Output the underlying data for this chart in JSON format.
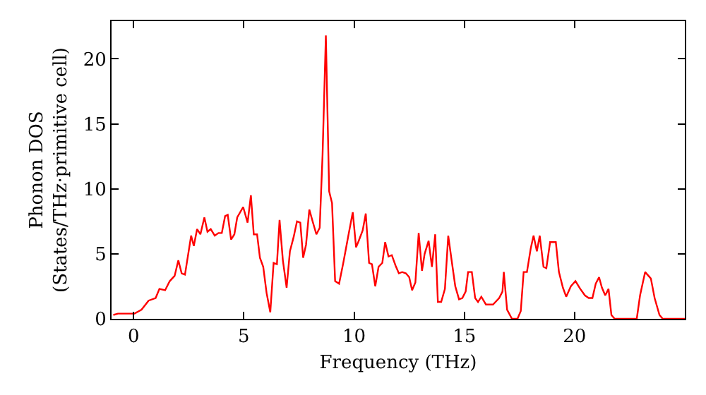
{
  "chart_data": {
    "type": "line",
    "xlabel": "Frequency (THz)",
    "ylabel": "Phonon DOS\n(States/THz·primitive cell)",
    "xlim": [
      -1,
      25
    ],
    "ylim": [
      0,
      22.9
    ],
    "xticks": [
      0,
      5,
      10,
      15,
      20
    ],
    "yticks": [
      0,
      5,
      10,
      15,
      20
    ],
    "grid": false,
    "marker": "none",
    "line_style": "solid",
    "series": [
      {
        "color": "#ff0000",
        "x": [
          -0.92,
          -0.71,
          0.04,
          0.36,
          0.68,
          1.0,
          1.17,
          1.43,
          1.64,
          1.86,
          2.03,
          2.18,
          2.33,
          2.61,
          2.73,
          2.88,
          3.03,
          3.21,
          3.35,
          3.5,
          3.68,
          3.85,
          4.0,
          4.15,
          4.27,
          4.42,
          4.57,
          4.7,
          4.97,
          5.17,
          5.32,
          5.45,
          5.6,
          5.73,
          5.88,
          6.03,
          6.2,
          6.35,
          6.5,
          6.62,
          6.77,
          6.94,
          7.09,
          7.26,
          7.41,
          7.56,
          7.69,
          7.82,
          7.97,
          8.12,
          8.29,
          8.44,
          8.57,
          8.72,
          8.87,
          9.0,
          9.14,
          9.32,
          9.51,
          9.74,
          9.94,
          10.09,
          10.21,
          10.39,
          10.53,
          10.68,
          10.81,
          10.96,
          11.11,
          11.28,
          11.41,
          11.56,
          11.71,
          11.88,
          12.03,
          12.18,
          12.35,
          12.5,
          12.63,
          12.78,
          12.93,
          13.08,
          13.2,
          13.38,
          13.53,
          13.68,
          13.8,
          13.95,
          14.12,
          14.27,
          14.44,
          14.59,
          14.76,
          14.91,
          15.06,
          15.17,
          15.34,
          15.49,
          15.62,
          15.77,
          15.98,
          16.3,
          16.58,
          16.73,
          16.79,
          16.94,
          17.16,
          17.41,
          17.56,
          17.69,
          17.84,
          18.01,
          18.14,
          18.29,
          18.42,
          18.59,
          18.72,
          18.89,
          19.15,
          19.29,
          19.47,
          19.62,
          19.83,
          20.04,
          20.26,
          20.47,
          20.64,
          20.81,
          20.96,
          21.11,
          21.24,
          21.39,
          21.54,
          21.67,
          21.82,
          22.82,
          22.97,
          23.2,
          23.46,
          23.63,
          23.85,
          24.0,
          25.0
        ],
        "values": [
          0.3,
          0.4,
          0.4,
          0.7,
          1.4,
          1.6,
          2.3,
          2.2,
          2.9,
          3.3,
          4.5,
          3.5,
          3.4,
          6.4,
          5.6,
          6.9,
          6.5,
          7.8,
          6.7,
          6.9,
          6.4,
          6.6,
          6.6,
          7.9,
          8.0,
          6.1,
          6.5,
          7.8,
          8.6,
          7.4,
          9.5,
          6.5,
          6.5,
          4.7,
          4.0,
          2.0,
          0.5,
          4.3,
          4.2,
          7.6,
          4.5,
          2.4,
          5.2,
          6.3,
          7.5,
          7.4,
          4.7,
          5.7,
          8.4,
          7.5,
          6.5,
          7.0,
          12.6,
          21.8,
          9.8,
          8.9,
          2.9,
          2.7,
          4.3,
          6.4,
          8.2,
          5.5,
          6.0,
          6.8,
          8.1,
          4.3,
          4.2,
          2.5,
          4.0,
          4.3,
          5.9,
          4.8,
          4.9,
          4.1,
          3.5,
          3.6,
          3.5,
          3.2,
          2.2,
          2.8,
          6.6,
          3.7,
          5.0,
          6.0,
          4.0,
          6.5,
          1.3,
          1.3,
          2.3,
          6.4,
          4.3,
          2.5,
          1.5,
          1.6,
          2.1,
          3.6,
          3.6,
          1.6,
          1.3,
          1.7,
          1.1,
          1.1,
          1.6,
          2.1,
          3.6,
          0.7,
          0,
          0,
          0.6,
          3.6,
          3.6,
          5.4,
          6.4,
          5.2,
          6.4,
          4.0,
          3.9,
          5.9,
          5.9,
          3.6,
          2.4,
          1.7,
          2.5,
          2.9,
          2.3,
          1.8,
          1.6,
          1.6,
          2.7,
          3.2,
          2.4,
          1.8,
          2.3,
          0.3,
          0,
          0,
          1.8,
          3.6,
          3.1,
          1.6,
          0.3,
          0,
          0
        ]
      }
    ]
  }
}
